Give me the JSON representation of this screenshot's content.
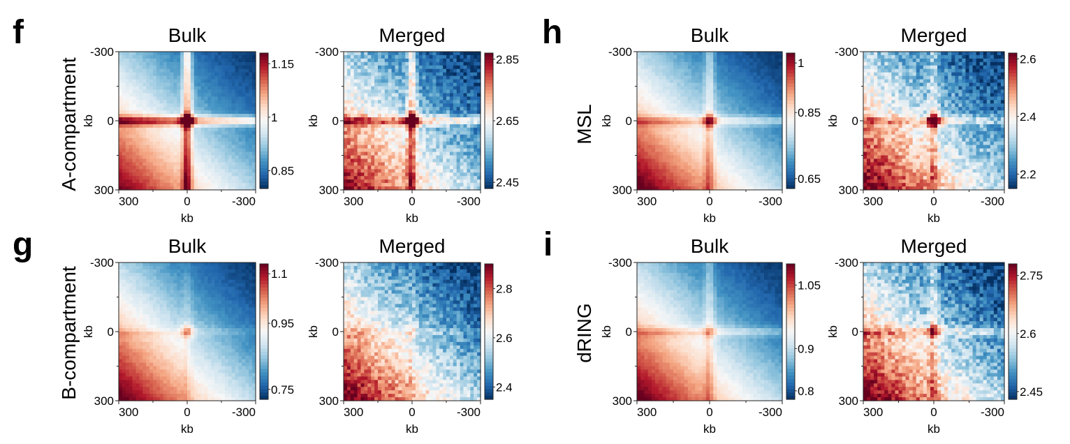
{
  "figure": {
    "panels": [
      {
        "letter": "f",
        "row_label": "A-compartment"
      },
      {
        "letter": "g",
        "row_label": "B-compartment"
      },
      {
        "letter": "h",
        "row_label": "MSL"
      },
      {
        "letter": "i",
        "row_label": "dRING"
      }
    ]
  },
  "colors": {
    "dark_red": "#67001f",
    "red": "#b2182b",
    "light_red": "#d6604d",
    "pink": "#f4a582",
    "pale": "#fddbc7",
    "white": "#f7f7f7",
    "pale_blue": "#d1e5f0",
    "light_blue": "#92c5de",
    "blue": "#4393c3",
    "dark_blue": "#2166ac",
    "navy": "#053061"
  },
  "chart_data": [
    {
      "id": "f-bulk",
      "type": "heatmap",
      "title": "Bulk",
      "xlabel": "kb",
      "ylabel": "kb",
      "xticks": [
        "300",
        "0",
        "-300"
      ],
      "yticks": [
        "-300",
        "0",
        "300"
      ],
      "colorbar": {
        "min": 0.8,
        "max": 1.18,
        "ticks": [
          1.15,
          1,
          0.85
        ],
        "tick_labels": [
          "1.15",
          "1",
          "0.85"
        ]
      },
      "pattern": {
        "corner": 0.95,
        "stripe": 0.65,
        "dot": 0.9,
        "noise": 0.04
      }
    },
    {
      "id": "f-merged",
      "type": "heatmap",
      "title": "Merged",
      "xlabel": "kb",
      "ylabel": "kb",
      "xticks": [
        "300",
        "0",
        "-300"
      ],
      "yticks": [
        "-300",
        "0",
        "300"
      ],
      "colorbar": {
        "min": 2.43,
        "max": 2.87,
        "ticks": [
          2.85,
          2.65,
          2.45
        ],
        "tick_labels": [
          "2.85",
          "2.65",
          "2.45"
        ]
      },
      "pattern": {
        "corner": 0.95,
        "stripe": 0.55,
        "dot": 0.9,
        "noise": 0.2
      }
    },
    {
      "id": "g-bulk",
      "type": "heatmap",
      "title": "Bulk",
      "xlabel": "kb",
      "ylabel": "kb",
      "xticks": [
        "300",
        "0",
        "-300"
      ],
      "yticks": [
        "-300",
        "0",
        "300"
      ],
      "colorbar": {
        "min": 0.72,
        "max": 1.13,
        "ticks": [
          1.1,
          0.95,
          0.75
        ],
        "tick_labels": [
          "1.1",
          "0.95",
          "0.75"
        ]
      },
      "pattern": {
        "corner": 1.0,
        "stripe": 0.08,
        "dot": 0.35,
        "noise": 0.04
      }
    },
    {
      "id": "g-merged",
      "type": "heatmap",
      "title": "Merged",
      "xlabel": "kb",
      "ylabel": "kb",
      "xticks": [
        "300",
        "0",
        "-300"
      ],
      "yticks": [
        "-300",
        "0",
        "300"
      ],
      "colorbar": {
        "min": 2.35,
        "max": 2.9,
        "ticks": [
          2.8,
          2.6,
          2.4
        ],
        "tick_labels": [
          "2.8",
          "2.6",
          "2.4"
        ]
      },
      "pattern": {
        "corner": 1.0,
        "stripe": 0.08,
        "dot": 0.15,
        "noise": 0.2
      }
    },
    {
      "id": "h-bulk",
      "type": "heatmap",
      "title": "Bulk",
      "xlabel": "kb",
      "ylabel": "kb",
      "xticks": [
        "300",
        "0",
        "-300"
      ],
      "yticks": [
        "-300",
        "0",
        "300"
      ],
      "colorbar": {
        "min": 0.62,
        "max": 1.03,
        "ticks": [
          1,
          0.85,
          0.65
        ],
        "tick_labels": [
          "1",
          "0.85",
          "0.65"
        ]
      },
      "pattern": {
        "corner": 1.0,
        "stripe": 0.3,
        "dot": 0.5,
        "noise": 0.04
      }
    },
    {
      "id": "h-merged",
      "type": "heatmap",
      "title": "Merged",
      "xlabel": "kb",
      "ylabel": "kb",
      "xticks": [
        "300",
        "0",
        "-300"
      ],
      "yticks": [
        "-300",
        "0",
        "300"
      ],
      "colorbar": {
        "min": 2.15,
        "max": 2.62,
        "ticks": [
          2.6,
          2.4,
          2.2
        ],
        "tick_labels": [
          "2.6",
          "2.4",
          "2.2"
        ]
      },
      "pattern": {
        "corner": 1.0,
        "stripe": 0.3,
        "dot": 0.85,
        "noise": 0.22
      }
    },
    {
      "id": "i-bulk",
      "type": "heatmap",
      "title": "Bulk",
      "xlabel": "kb",
      "ylabel": "kb",
      "xticks": [
        "300",
        "0",
        "-300"
      ],
      "yticks": [
        "-300",
        "0",
        "300"
      ],
      "colorbar": {
        "min": 0.78,
        "max": 1.1,
        "ticks": [
          1.05,
          0.9,
          0.8
        ],
        "tick_labels": [
          "1.05",
          "0.9",
          "0.8"
        ]
      },
      "pattern": {
        "corner": 1.0,
        "stripe": 0.22,
        "dot": 0.25,
        "noise": 0.04
      }
    },
    {
      "id": "i-merged",
      "type": "heatmap",
      "title": "Merged",
      "xlabel": "kb",
      "ylabel": "kb",
      "xticks": [
        "300",
        "0",
        "-300"
      ],
      "yticks": [
        "-300",
        "0",
        "300"
      ],
      "colorbar": {
        "min": 2.43,
        "max": 2.78,
        "ticks": [
          2.75,
          2.6,
          2.45
        ],
        "tick_labels": [
          "2.75",
          "2.6",
          "2.45"
        ]
      },
      "pattern": {
        "corner": 1.0,
        "stripe": 0.3,
        "dot": 0.45,
        "noise": 0.22
      }
    }
  ]
}
